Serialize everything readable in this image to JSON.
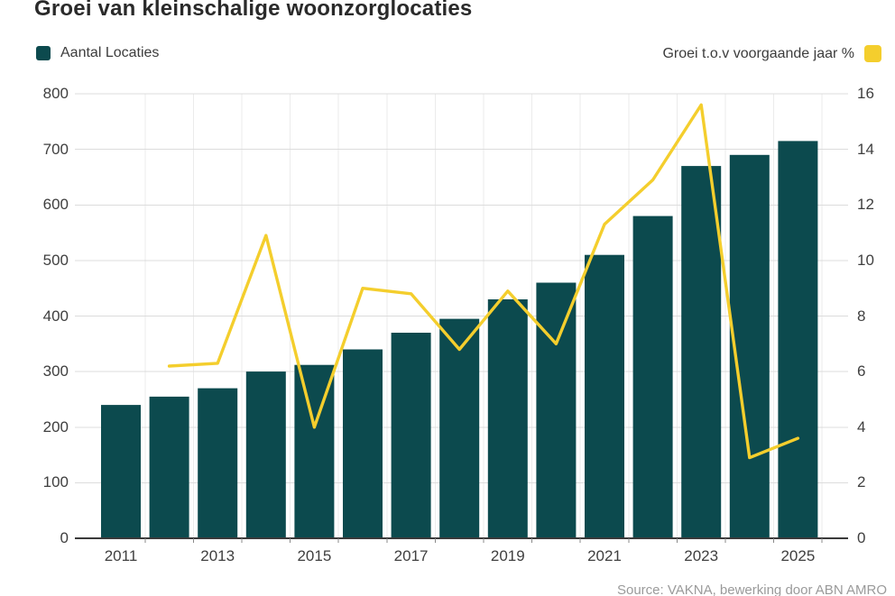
{
  "title": "Groei van kleinschalige woonzorglocaties",
  "legend": {
    "bars_label": "Aantal Locaties",
    "line_label": "Groei t.o.v voorgaande jaar %"
  },
  "source": "Source:  VAKNA, bewerking door ABN AMRO",
  "colors": {
    "bar": "#0c4a4e",
    "line": "#f4ce2d",
    "grid_horizontal": "#dcdcdc",
    "grid_vertical": "#ebebeb",
    "axis": "#3a3a3a",
    "tick": "#8a8a8a",
    "label": "#3f3f3f",
    "title": "#2a2a2a",
    "source": "#9a9a9a"
  },
  "chart_data": {
    "type": "bar+line",
    "categories": [
      "2011",
      "2012",
      "2013",
      "2014",
      "2015",
      "2016",
      "2017",
      "2018",
      "2019",
      "2020",
      "2021",
      "2022",
      "2023",
      "2024",
      "2025"
    ],
    "x_axis_visible_labels": [
      "2011",
      "2013",
      "2015",
      "2017",
      "2019",
      "2021",
      "2023",
      "2025"
    ],
    "series": [
      {
        "name": "Aantal Locaties",
        "type": "bar",
        "axis": "left",
        "color": "#0c4a4e",
        "values": [
          240,
          255,
          270,
          300,
          312,
          340,
          370,
          395,
          430,
          460,
          510,
          580,
          670,
          690,
          715
        ]
      },
      {
        "name": "Groei t.o.v voorgaande jaar %",
        "type": "line",
        "axis": "right",
        "color": "#f4ce2d",
        "first_category": "2012",
        "values": [
          6.2,
          6.3,
          10.9,
          4.0,
          9.0,
          8.8,
          6.8,
          8.9,
          7.0,
          11.3,
          12.9,
          15.6,
          2.9,
          3.6
        ]
      }
    ],
    "left_axis": {
      "min": 0,
      "max": 800,
      "tick_step": 100,
      "ticks": [
        "800",
        "700",
        "600",
        "500",
        "400",
        "300",
        "200",
        "100",
        "0"
      ]
    },
    "right_axis": {
      "min": 0,
      "max": 16,
      "tick_step": 2,
      "ticks": [
        "16",
        "14",
        "12",
        "10",
        "8",
        "6",
        "4",
        "2",
        "0"
      ]
    },
    "grid": true,
    "legend_position": "top"
  }
}
